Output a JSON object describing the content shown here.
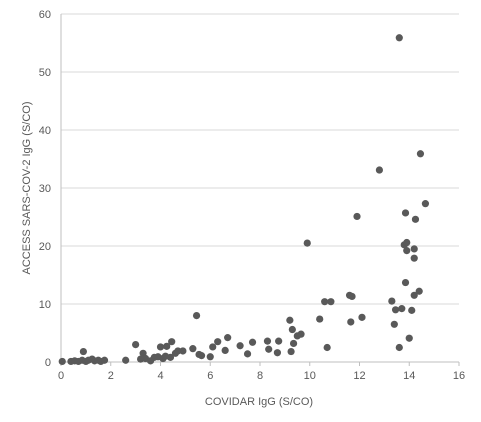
{
  "chart_data": {
    "type": "scatter",
    "title": "",
    "xlabel": "COVIDAR IgG (S/CO)",
    "ylabel": "ACCESS SARS-COV-2 IgG (S/CO)",
    "xlim": [
      0,
      16
    ],
    "ylim": [
      0,
      60
    ],
    "x_ticks": [
      0,
      2,
      4,
      6,
      8,
      10,
      12,
      14,
      16
    ],
    "y_ticks": [
      0,
      10,
      20,
      30,
      40,
      50,
      60
    ],
    "grid": "horizontal",
    "legend": "none",
    "marker_color": "#595959",
    "points": [
      {
        "x": 0.05,
        "y": 0.1
      },
      {
        "x": 0.4,
        "y": 0.1
      },
      {
        "x": 0.55,
        "y": 0.2
      },
      {
        "x": 0.7,
        "y": 0.1
      },
      {
        "x": 0.85,
        "y": 0.3
      },
      {
        "x": 0.9,
        "y": 1.8
      },
      {
        "x": 1.0,
        "y": 0.1
      },
      {
        "x": 1.1,
        "y": 0.3
      },
      {
        "x": 1.25,
        "y": 0.5
      },
      {
        "x": 1.35,
        "y": 0.2
      },
      {
        "x": 1.5,
        "y": 0.3
      },
      {
        "x": 1.6,
        "y": 0.1
      },
      {
        "x": 1.75,
        "y": 0.3
      },
      {
        "x": 2.6,
        "y": 0.3
      },
      {
        "x": 3.0,
        "y": 3.0
      },
      {
        "x": 3.2,
        "y": 0.5
      },
      {
        "x": 3.3,
        "y": 1.5
      },
      {
        "x": 3.4,
        "y": 0.6
      },
      {
        "x": 3.6,
        "y": 0.2
      },
      {
        "x": 3.75,
        "y": 0.8
      },
      {
        "x": 3.9,
        "y": 0.9
      },
      {
        "x": 4.0,
        "y": 2.6
      },
      {
        "x": 4.1,
        "y": 0.6
      },
      {
        "x": 4.2,
        "y": 1.0
      },
      {
        "x": 4.25,
        "y": 2.7
      },
      {
        "x": 4.4,
        "y": 0.8
      },
      {
        "x": 4.45,
        "y": 3.5
      },
      {
        "x": 4.6,
        "y": 1.5
      },
      {
        "x": 4.7,
        "y": 1.9
      },
      {
        "x": 4.9,
        "y": 1.9
      },
      {
        "x": 5.3,
        "y": 2.3
      },
      {
        "x": 5.45,
        "y": 8.0
      },
      {
        "x": 5.55,
        "y": 1.3
      },
      {
        "x": 5.65,
        "y": 1.1
      },
      {
        "x": 6.0,
        "y": 0.9
      },
      {
        "x": 6.1,
        "y": 2.6
      },
      {
        "x": 6.3,
        "y": 3.5
      },
      {
        "x": 6.6,
        "y": 2.0
      },
      {
        "x": 6.7,
        "y": 4.2
      },
      {
        "x": 7.2,
        "y": 2.8
      },
      {
        "x": 7.5,
        "y": 1.4
      },
      {
        "x": 7.7,
        "y": 3.4
      },
      {
        "x": 8.3,
        "y": 3.6
      },
      {
        "x": 8.35,
        "y": 2.2
      },
      {
        "x": 8.7,
        "y": 1.6
      },
      {
        "x": 8.75,
        "y": 3.6
      },
      {
        "x": 9.2,
        "y": 7.2
      },
      {
        "x": 9.25,
        "y": 1.8
      },
      {
        "x": 9.3,
        "y": 5.6
      },
      {
        "x": 9.35,
        "y": 3.2
      },
      {
        "x": 9.5,
        "y": 4.5
      },
      {
        "x": 9.65,
        "y": 4.8
      },
      {
        "x": 9.9,
        "y": 20.5
      },
      {
        "x": 10.4,
        "y": 7.4
      },
      {
        "x": 10.6,
        "y": 10.4
      },
      {
        "x": 10.7,
        "y": 2.5
      },
      {
        "x": 10.85,
        "y": 10.4
      },
      {
        "x": 11.6,
        "y": 11.5
      },
      {
        "x": 11.65,
        "y": 6.9
      },
      {
        "x": 11.7,
        "y": 11.3
      },
      {
        "x": 11.9,
        "y": 25.1
      },
      {
        "x": 12.1,
        "y": 7.7
      },
      {
        "x": 12.8,
        "y": 33.1
      },
      {
        "x": 13.3,
        "y": 10.5
      },
      {
        "x": 13.4,
        "y": 6.5
      },
      {
        "x": 13.45,
        "y": 9.0
      },
      {
        "x": 13.6,
        "y": 55.9
      },
      {
        "x": 13.6,
        "y": 2.5
      },
      {
        "x": 13.7,
        "y": 9.2
      },
      {
        "x": 13.8,
        "y": 20.2
      },
      {
        "x": 13.85,
        "y": 25.7
      },
      {
        "x": 13.85,
        "y": 13.7
      },
      {
        "x": 13.9,
        "y": 20.6
      },
      {
        "x": 13.9,
        "y": 19.2
      },
      {
        "x": 14.0,
        "y": 4.1
      },
      {
        "x": 14.1,
        "y": 8.9
      },
      {
        "x": 14.2,
        "y": 19.5
      },
      {
        "x": 14.25,
        "y": 24.6
      },
      {
        "x": 14.2,
        "y": 17.9
      },
      {
        "x": 14.2,
        "y": 11.5
      },
      {
        "x": 14.4,
        "y": 12.2
      },
      {
        "x": 14.45,
        "y": 35.9
      },
      {
        "x": 14.65,
        "y": 27.3
      }
    ]
  }
}
